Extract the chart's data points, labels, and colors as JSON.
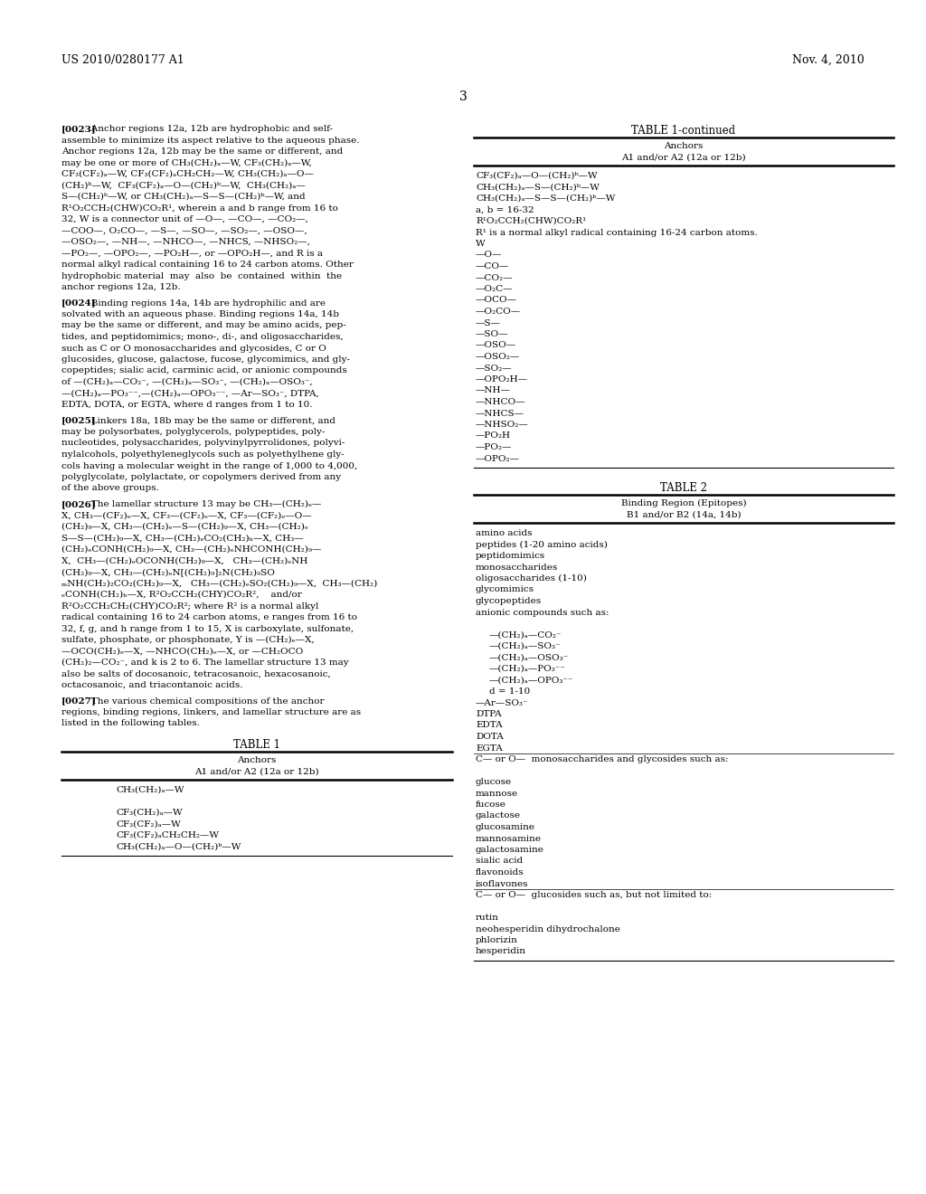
{
  "page_number": "3",
  "header_left": "US 2010/0280177 A1",
  "header_right": "Nov. 4, 2010",
  "background_color": "#ffffff",
  "p0023_lines": [
    "[0023]   Anchor regions 12a, 12b are hydrophobic and self-",
    "assemble to minimize its aspect relative to the aqueous phase.",
    "Anchor regions 12a, 12b may be the same or different, and",
    "may be one or more of CH₃(CH₂)ₐ—W, CF₃(CH₂)ₐ—W,",
    "CF₃(CF₂)ₐ—W, CF₃(CF₂)ₐCH₂CH₂—W, CH₃(CH₂)ₐ—O—",
    "(CH₂)ᵇ—W,  CF₃(CF₂)ₐ—O—(CH₂)ᵇ—W,  CH₃(CH₂)ₐ—",
    "S—(CH₂)ᵇ—W, or CH₃(CH₂)ₐ—S—S—(CH₂)ᵇ—W, and",
    "R¹O₂CCH₂(CHW)CO₂R¹, wherein a and b range from 16 to",
    "32, W is a connector unit of —O—, —CO—, —CO₂—,",
    "—COO—, O₂CO—, —S—, —SO—, —SO₂—, —OSO—,",
    "—OSO₂—, —NH—, —NHCO—, —NHCS, —NHSO₂—,",
    "—PO₂—, —OPO₂—, —PO₂H—, or —OPO₂H—, and R is a",
    "normal alkyl radical containing 16 to 24 carbon atoms. Other",
    "hydrophobic material  may  also  be  contained  within  the",
    "anchor regions 12a, 12b."
  ],
  "p0024_lines": [
    "[0024]   Binding regions 14a, 14b are hydrophilic and are",
    "solvated with an aqueous phase. Binding regions 14a, 14b",
    "may be the same or different, and may be amino acids, pep-",
    "tides, and peptidomimics; mono-, di-, and oligosaccharides,",
    "such as C or O monosaccharides and glycosides, C or O",
    "glucosides, glucose, galactose, fucose, glycomimics, and gly-",
    "copeptides; sialic acid, carminic acid, or anionic compounds",
    "of —(CH₂)ₐ—CO₂⁻, —(CH₂)ₐ—SO₃⁻, —(CH₂)ₐ—OSO₃⁻,",
    "—(CH₂)ₐ—PO₃⁻⁻,—(CH₂)ₐ—OPO₃⁻⁻, —Ar—SO₃⁻, DTPA,",
    "EDTA, DOTA, or EGTA, where d ranges from 1 to 10."
  ],
  "p0025_lines": [
    "[0025]   Linkers 18a, 18b may be the same or different, and",
    "may be polysorbates, polyglycerols, polypeptides, poly-",
    "nucleotides, polysaccharides, polyvinylpyrrolidones, polyvi-",
    "nylalcohols, polyethyleneglycols such as polyethylhene gly-",
    "cols having a molecular weight in the range of 1,000 to 4,000,",
    "polyglycolate, polylactate, or copolymers derived from any",
    "of the above groups."
  ],
  "p0026_lines": [
    "[0026]   The lamellar structure 13 may be CH₃—(CH₂)ₑ—",
    "X, CH₃—(CF₂)ₑ—X, CF₃—(CF₂)ₑ—X, CF₃—(CF₂)ₑ—O—",
    "(CH₂)₉—X, CH₃—(CH₂)ₑ—S—(CH₂)₉—X, CH₃—(CH₂)ₑ",
    "S—S—(CH₂)₉—X, CH₃—(CH₂)ₑCO₂(CH₂)ₕ—X, CH₃—",
    "(CH₂)ₑCONH(CH₂)₉—X, CH₃—(CH₂)ₑNHCONH(CH₂)₉—",
    "X,  CH₃—(CH₂)ₑOCONH(CH₂)₉—X,   CH₃—(CH₂)ₑNH",
    "(CH₂)₉—X, CH₃—(CH₂)ₑN[(CH₂)₉]₂N(CH₂)₉SO",
    "ₘNH(CH₂)₂CO₂(CH₂)₉—X,   CH₃—(CH₂)ₑSO₂(CH₂)₉—X,  CH₃—(CH₂)",
    "ₑCONH(CH₂)ₕ—X, R²O₂CCH₂(CHY)CO₂R²,    and/or",
    "R²O₂CCH₂CH₂(CHY)CO₂R²; where R² is a normal alkyl",
    "radical containing 16 to 24 carbon atoms, e ranges from 16 to",
    "32, f, g, and h range from 1 to 15, X is carboxylate, sulfonate,",
    "sulfate, phosphate, or phosphonate, Y is —(CH₂)ₑ—X,",
    "—OCO(CH₂)ₑ—X, —NHCO(CH₂)ₑ—X, or —CH₂OCO",
    "(CH₂)₂—CO₂⁻, and k is 2 to 6. The lamellar structure 13 may",
    "also be salts of docosanoic, tetracosanoic, hexacosanoic,",
    "octacosanoic, and triacontanoic acids."
  ],
  "p0027_lines": [
    "[0027]   The various chemical compositions of the anchor",
    "regions, binding regions, linkers, and lamellar structure are as",
    "listed in the following tables."
  ],
  "table1_rows": [
    "CH₃(CH₂)ₐ—W",
    "",
    "CF₃(CH₂)ₐ—W",
    "CF₃(CF₂)ₐ—W",
    "CF₃(CF₂)ₐCH₂CH₂—W",
    "CH₃(CH₂)ₐ—O—(CH₂)ᵇ—W"
  ],
  "t1c_rows": [
    "CF₃(CF₂)ₐ—O—(CH₂)ᵇ—W",
    "CH₃(CH₂)ₐ—S—(CH₂)ᵇ—W",
    "CH₃(CH₂)ₐ—S—S—(CH₂)ᵇ—W",
    "a, b = 16-32",
    "R¹O₂CCH₂(CHW)CO₂R¹",
    "R¹ is a normal alkyl radical containing 16-24 carbon atoms.",
    "W",
    "—O—",
    "—CO—",
    "—CO₂—",
    "—O₂C—",
    "—OCO—",
    "—O₂CO—",
    "—S—",
    "—SO—",
    "—OSO—",
    "—OSO₂—",
    "—SO₂—",
    "—OPO₂H—",
    "—NH—",
    "—NHCO—",
    "—NHCS—",
    "—NHSO₂—",
    "—PO₂H",
    "—PO₂—",
    "—OPO₂—"
  ],
  "t2_rows": [
    [
      "amino acids",
      false
    ],
    [
      "peptides (1-20 amino acids)",
      false
    ],
    [
      "peptidomimics",
      false
    ],
    [
      "monosaccharides",
      false
    ],
    [
      "oligosaccharides (1-10)",
      false
    ],
    [
      "glycomimics",
      false
    ],
    [
      "glycopeptides",
      false
    ],
    [
      "anionic compounds such as:",
      false
    ],
    [
      "",
      false
    ],
    [
      "—(CH₂)ₐ—CO₂⁻",
      true
    ],
    [
      "—(CH₂)ₐ—SO₃⁻",
      true
    ],
    [
      "—(CH₂)ₐ—OSO₃⁻",
      true
    ],
    [
      "—(CH₂)ₐ—PO₃⁻⁻",
      true
    ],
    [
      "—(CH₂)ₐ—OPO₃⁻⁻",
      true
    ],
    [
      "d = 1-10",
      true
    ],
    [
      "—Ar—SO₃⁻",
      false
    ],
    [
      "DTPA",
      false
    ],
    [
      "EDTA",
      false
    ],
    [
      "DOTA",
      false
    ],
    [
      "EGTA",
      false
    ],
    [
      "C— or O—  monosaccharides and glycosides such as:",
      false
    ],
    [
      "",
      false
    ],
    [
      "glucose",
      false
    ],
    [
      "mannose",
      false
    ],
    [
      "fucose",
      false
    ],
    [
      "galactose",
      false
    ],
    [
      "glucosamine",
      false
    ],
    [
      "mannosamine",
      false
    ],
    [
      "galactosamine",
      false
    ],
    [
      "sialic acid",
      false
    ],
    [
      "flavonoids",
      false
    ],
    [
      "isoflavones",
      false
    ],
    [
      "C— or O—  glucosides such as, but not limited to:",
      false
    ],
    [
      "",
      false
    ],
    [
      "rutin",
      false
    ],
    [
      "neohesperidin dihydrochalone",
      false
    ],
    [
      "phlorizin",
      false
    ],
    [
      "hesperidin",
      false
    ]
  ]
}
